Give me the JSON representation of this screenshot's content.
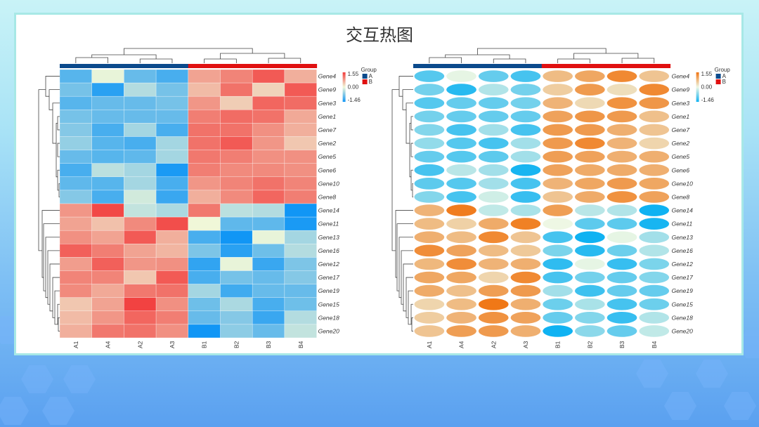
{
  "title": "交互热图",
  "chart_data": [
    {
      "type": "heatmap",
      "style": "rectangle",
      "rows": [
        "Gene4",
        "Gene9",
        "Gene3",
        "Gene1",
        "Gene7",
        "Gene2",
        "Gene5",
        "Gene6",
        "Gene10",
        "Gene8",
        "Gene14",
        "Gene11",
        "Gene13",
        "Gene16",
        "Gene12",
        "Gene17",
        "Gene19",
        "Gene15",
        "Gene18",
        "Gene20"
      ],
      "columns": [
        "A1",
        "A4",
        "A2",
        "A3",
        "B1",
        "B2",
        "B3",
        "B4"
      ],
      "column_groups": [
        "A",
        "A",
        "A",
        "A",
        "B",
        "B",
        "B",
        "B"
      ],
      "values": [
        [
          -1.0,
          -0.05,
          -0.9,
          -1.1,
          0.7,
          0.95,
          1.3,
          0.6
        ],
        [
          -0.8,
          -1.3,
          -0.4,
          -0.8,
          0.5,
          1.1,
          0.3,
          1.3
        ],
        [
          -1.0,
          -0.9,
          -0.9,
          -0.8,
          0.8,
          0.35,
          1.2,
          1.15
        ],
        [
          -0.8,
          -0.9,
          -0.9,
          -0.9,
          1.0,
          1.15,
          1.1,
          0.65
        ],
        [
          -0.7,
          -1.1,
          -0.5,
          -1.1,
          1.1,
          1.1,
          0.85,
          0.6
        ],
        [
          -0.6,
          -1.0,
          -1.1,
          -0.5,
          1.1,
          1.3,
          0.8,
          0.4
        ],
        [
          -0.9,
          -1.0,
          -0.95,
          -0.5,
          1.05,
          1.0,
          0.85,
          0.85
        ],
        [
          -1.1,
          -0.35,
          -0.5,
          -1.4,
          1.0,
          0.9,
          0.9,
          0.85
        ],
        [
          -0.95,
          -1.0,
          -0.5,
          -1.1,
          0.8,
          0.95,
          1.1,
          0.95
        ],
        [
          -0.7,
          -1.1,
          -0.2,
          -1.2,
          0.6,
          0.9,
          1.2,
          1.0
        ],
        [
          0.8,
          1.45,
          -0.3,
          -0.45,
          1.05,
          -0.35,
          -0.4,
          -1.46
        ],
        [
          0.7,
          0.45,
          0.9,
          1.4,
          0.0,
          -0.95,
          -0.95,
          -1.4
        ],
        [
          0.85,
          0.7,
          1.3,
          0.6,
          -1.1,
          -1.46,
          -0.05,
          -0.5
        ],
        [
          1.25,
          1.0,
          0.7,
          0.55,
          -0.75,
          -1.3,
          -0.85,
          -0.4
        ],
        [
          0.75,
          1.25,
          0.8,
          0.85,
          -1.25,
          -0.05,
          -1.2,
          -0.75
        ],
        [
          0.95,
          0.95,
          0.4,
          1.3,
          -1.1,
          -0.8,
          -0.9,
          -0.7
        ],
        [
          0.9,
          0.65,
          1.05,
          1.1,
          -0.5,
          -1.15,
          -0.9,
          -0.9
        ],
        [
          0.4,
          0.7,
          1.5,
          0.85,
          -0.85,
          -0.45,
          -1.1,
          -0.85
        ],
        [
          0.5,
          0.8,
          1.2,
          1.0,
          -0.9,
          -0.7,
          -1.2,
          -0.4
        ],
        [
          0.6,
          1.05,
          1.1,
          0.85,
          -1.46,
          -0.65,
          -0.9,
          -0.3
        ]
      ],
      "scale": {
        "min": -1.46,
        "mid": 0.0,
        "max": 1.55,
        "labels": [
          "1.55",
          "0.00",
          "-1.46"
        ],
        "colors": {
          "low": "#1196f5",
          "mid": "#f0f7d8",
          "high": "#f23c3c"
        }
      },
      "legend": {
        "title": "Group",
        "entries": [
          {
            "label": "A",
            "color": "#0b4a8c"
          },
          {
            "label": "B",
            "color": "#e01010"
          }
        ],
        "position": "right"
      }
    },
    {
      "type": "heatmap",
      "style": "ellipse",
      "same_data_as": 0,
      "scale": {
        "min": -1.46,
        "mid": 0.0,
        "max": 1.55,
        "labels": [
          "1.55",
          "0.00",
          "-1.46"
        ],
        "colors": {
          "low": "#0fb2f2",
          "mid": "#eef7e4",
          "high": "#f07410"
        }
      },
      "legend": {
        "title": "Group",
        "entries": [
          {
            "label": "A",
            "color": "#0b4a8c"
          },
          {
            "label": "B",
            "color": "#e01010"
          }
        ],
        "position": "right"
      }
    }
  ]
}
